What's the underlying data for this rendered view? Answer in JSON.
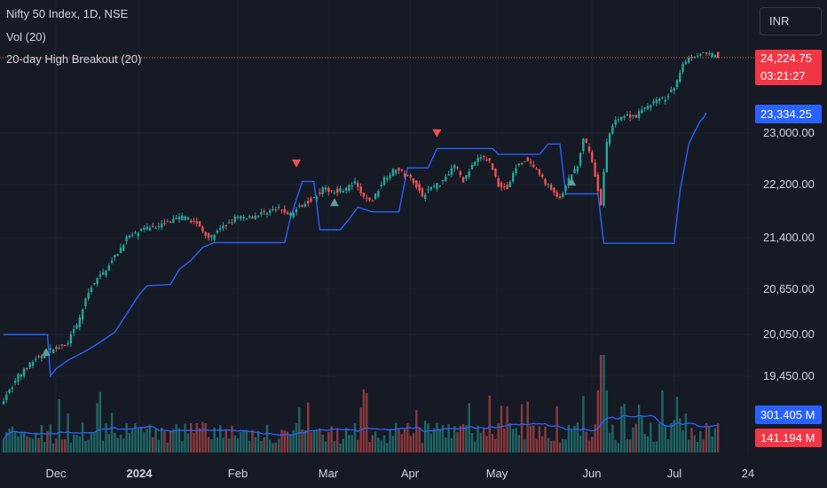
{
  "header": {
    "symbol_line": "Nifty 50 Index, 1D, NSE",
    "volume_line": "Vol (20)",
    "indicator_line": "20-day High Breakout (20)"
  },
  "currency_button": "INR",
  "price_tags": {
    "last_price": "24,224.75",
    "countdown": "03:21:27",
    "breakout_level": "23,334.25",
    "volume_ma": "301.405 M",
    "volume_last": "141.194 M"
  },
  "colors": {
    "background": "#161a25",
    "up": "#26a69a",
    "down": "#ef5350",
    "breakout_line": "#2962ff",
    "grid": "#1f2330",
    "text": "#d1d4dc"
  },
  "chart_data": [
    {
      "type": "candlestick",
      "title": "Nifty 50 Index, 1D, NSE",
      "x_ticks": [
        "Dec",
        "2024",
        "Feb",
        "Mar",
        "Apr",
        "May",
        "Jun",
        "Jul",
        "24"
      ],
      "y_ticks": [
        23000,
        22200,
        21400,
        20650,
        20050,
        19450
      ],
      "y_tick_labels": [
        "23,000.00",
        "22,200.00",
        "21,400.00",
        "20,650.00",
        "20,050.00",
        "19,450.00"
      ],
      "series": [
        {
          "name": "Nifty 50 Index",
          "close_path": [
            [
              0,
              19100
            ],
            [
              5,
              19450
            ],
            [
              11,
              19700
            ],
            [
              17,
              19850
            ],
            [
              21,
              19890
            ],
            [
              25,
              20160
            ],
            [
              28,
              20500
            ],
            [
              30,
              20700
            ],
            [
              34,
              20890
            ],
            [
              36,
              21020
            ],
            [
              39,
              21180
            ],
            [
              42,
              21400
            ],
            [
              46,
              21480
            ],
            [
              50,
              21560
            ],
            [
              55,
              21620
            ],
            [
              61,
              21710
            ],
            [
              66,
              21620
            ],
            [
              70,
              21380
            ],
            [
              74,
              21520
            ],
            [
              79,
              21700
            ],
            [
              85,
              21720
            ],
            [
              90,
              21800
            ],
            [
              94,
              21830
            ],
            [
              98,
              21750
            ],
            [
              102,
              21900
            ],
            [
              106,
              22000
            ],
            [
              109,
              22130
            ],
            [
              113,
              22100
            ],
            [
              117,
              22140
            ],
            [
              120,
              22220
            ],
            [
              123,
              22000
            ],
            [
              126,
              21960
            ],
            [
              130,
              22300
            ],
            [
              134,
              22450
            ],
            [
              137,
              22350
            ],
            [
              140,
              22260
            ],
            [
              143,
              22030
            ],
            [
              146,
              22160
            ],
            [
              149,
              22220
            ],
            [
              152,
              22390
            ],
            [
              154,
              22510
            ],
            [
              157,
              22260
            ],
            [
              160,
              22480
            ],
            [
              163,
              22640
            ],
            [
              166,
              22560
            ],
            [
              169,
              22200
            ],
            [
              172,
              22140
            ],
            [
              175,
              22470
            ],
            [
              178,
              22590
            ],
            [
              180,
              22510
            ],
            [
              183,
              22340
            ],
            [
              185,
              22230
            ],
            [
              188,
              22080
            ],
            [
              190,
              21970
            ],
            [
              192,
              22180
            ],
            [
              194,
              22370
            ],
            [
              196,
              22470
            ],
            [
              198,
              22900
            ],
            [
              200,
              22750
            ],
            [
              201,
              22540
            ],
            [
              203,
              22100
            ],
            [
              204,
              21920
            ],
            [
              206,
              22850
            ],
            [
              209,
              23240
            ],
            [
              212,
              23280
            ],
            [
              216,
              23290
            ],
            [
              219,
              23410
            ],
            [
              222,
              23510
            ],
            [
              226,
              23570
            ],
            [
              229,
              23730
            ],
            [
              232,
              24140
            ],
            [
              235,
              24250
            ],
            [
              238,
              24290
            ],
            [
              241,
              24270
            ],
            [
              243,
              24280
            ],
            [
              244,
              24224.75
            ]
          ]
        },
        {
          "name": "20-day High Breakout (20)",
          "steps": [
            [
              0,
              20050
            ],
            [
              15,
              20050
            ],
            [
              16,
              19450
            ],
            [
              18,
              19560
            ],
            [
              22,
              19680
            ],
            [
              28,
              19810
            ],
            [
              33,
              19940
            ],
            [
              38,
              20080
            ],
            [
              42,
              20320
            ],
            [
              46,
              20560
            ],
            [
              49,
              20700
            ],
            [
              57,
              20720
            ],
            [
              60,
              20940
            ],
            [
              64,
              21070
            ],
            [
              68,
              21260
            ],
            [
              72,
              21330
            ],
            [
              96,
              21330
            ],
            [
              98,
              21700
            ],
            [
              102,
              22250
            ],
            [
              106,
              22250
            ],
            [
              108,
              21520
            ],
            [
              115,
              21520
            ],
            [
              118,
              21680
            ],
            [
              121,
              21860
            ],
            [
              126,
              21790
            ],
            [
              135,
              21790
            ],
            [
              138,
              22460
            ],
            [
              145,
              22460
            ],
            [
              148,
              22760
            ],
            [
              167,
              22760
            ],
            [
              169,
              22670
            ],
            [
              183,
              22670
            ],
            [
              186,
              22830
            ],
            [
              190,
              22830
            ],
            [
              192,
              22060
            ],
            [
              203,
              22060
            ],
            [
              205,
              21320
            ],
            [
              229,
              21320
            ],
            [
              231,
              22100
            ],
            [
              234,
              22830
            ],
            [
              236,
              23020
            ],
            [
              238,
              23200
            ],
            [
              239,
              23250
            ],
            [
              240,
              23334.25
            ]
          ]
        },
        {
          "name": "Vol (20)",
          "volume_ma_label": "301.405 M",
          "volume_last_label": "141.194 M"
        }
      ],
      "markers": [
        {
          "type": "sell",
          "x": 100,
          "y": 22520
        },
        {
          "type": "buy",
          "x": 113,
          "y": 21930
        },
        {
          "type": "sell",
          "x": 148,
          "y": 22990
        },
        {
          "type": "buy",
          "x": 194,
          "y": 22240
        }
      ],
      "last_price": 24224.75,
      "grid": true
    }
  ]
}
